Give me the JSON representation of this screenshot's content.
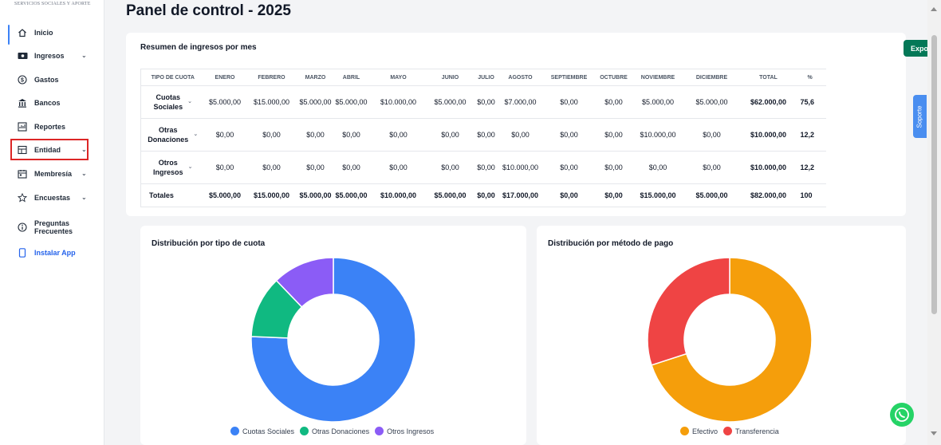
{
  "sidebar": {
    "brand": "SERVICIOS SOCIALES Y APORTE",
    "items": [
      {
        "label": "Inicio",
        "icon": "home-icon",
        "has_chevron": false
      },
      {
        "label": "Ingresos",
        "icon": "cash-icon",
        "has_chevron": true
      },
      {
        "label": "Gastos",
        "icon": "dollar-circle-icon",
        "has_chevron": false
      },
      {
        "label": "Bancos",
        "icon": "bank-icon",
        "has_chevron": false
      },
      {
        "label": "Reportes",
        "icon": "report-icon",
        "has_chevron": false
      },
      {
        "label": "Entidad",
        "icon": "entity-icon",
        "has_chevron": true
      },
      {
        "label": "Membresía",
        "icon": "calendar-icon",
        "has_chevron": true
      },
      {
        "label": "Encuestas",
        "icon": "star-icon",
        "has_chevron": true
      },
      {
        "label_line1": "Preguntas",
        "label_line2": "Frecuentes",
        "icon": "info-icon",
        "has_chevron": false
      },
      {
        "label": "Instalar App",
        "icon": "phone-icon",
        "has_chevron": false
      }
    ]
  },
  "header": {
    "title": "Panel de control - 2025"
  },
  "summary": {
    "title": "Resumen de ingresos por mes",
    "export_label": "Exportar",
    "columns": [
      "TIPO DE CUOTA",
      "ENERO",
      "FEBRERO",
      "MARZO",
      "ABRIL",
      "MAYO",
      "JUNIO",
      "JULIO",
      "AGOSTO",
      "SEPTIEMBRE",
      "OCTUBRE",
      "NOVIEMBRE",
      "DICIEMBRE",
      "TOTAL",
      "%"
    ],
    "rows": [
      {
        "type_line1": "Cuotas",
        "type_line2": "Sociales",
        "values": [
          "$5.000,00",
          "$15.000,00",
          "$5.000,00",
          "$5.000,00",
          "$10.000,00",
          "$5.000,00",
          "$0,00",
          "$7.000,00",
          "$0,00",
          "$0,00",
          "$5.000,00",
          "$5.000,00"
        ],
        "total": "$62.000,00",
        "percent": "75,6"
      },
      {
        "type_line1": "Otras",
        "type_line2": "Donaciones",
        "values": [
          "$0,00",
          "$0,00",
          "$0,00",
          "$0,00",
          "$0,00",
          "$0,00",
          "$0,00",
          "$0,00",
          "$0,00",
          "$0,00",
          "$10.000,00",
          "$0,00"
        ],
        "total": "$10.000,00",
        "percent": "12,2"
      },
      {
        "type_line1": "Otros",
        "type_line2": "Ingresos",
        "values": [
          "$0,00",
          "$0,00",
          "$0,00",
          "$0,00",
          "$0,00",
          "$0,00",
          "$0,00",
          "$10.000,00",
          "$0,00",
          "$0,00",
          "$0,00",
          "$0,00"
        ],
        "total": "$10.000,00",
        "percent": "12,2"
      }
    ],
    "totals": {
      "label": "Totales",
      "values": [
        "$5.000,00",
        "$15.000,00",
        "$5.000,00",
        "$5.000,00",
        "$10.000,00",
        "$5.000,00",
        "$0,00",
        "$17.000,00",
        "$0,00",
        "$0,00",
        "$15.000,00",
        "$5.000,00"
      ],
      "total": "$82.000,00",
      "percent": "100"
    }
  },
  "support_label": "Soporte",
  "chart_data": [
    {
      "type": "pie",
      "title": "Distribución por tipo de cuota",
      "categories": [
        "Cuotas Sociales",
        "Otras Donaciones",
        "Otros Ingresos"
      ],
      "values": [
        62000,
        10000,
        10000
      ],
      "colors": [
        "#3b82f6",
        "#10b981",
        "#8b5cf6"
      ],
      "legend": "bottom"
    },
    {
      "type": "pie",
      "title": "Distribución por método de pago",
      "categories": [
        "Efectivo",
        "Transferencia"
      ],
      "values": [
        70,
        30
      ],
      "colors": [
        "#f59e0b",
        "#ef4444"
      ],
      "legend": "bottom"
    }
  ]
}
